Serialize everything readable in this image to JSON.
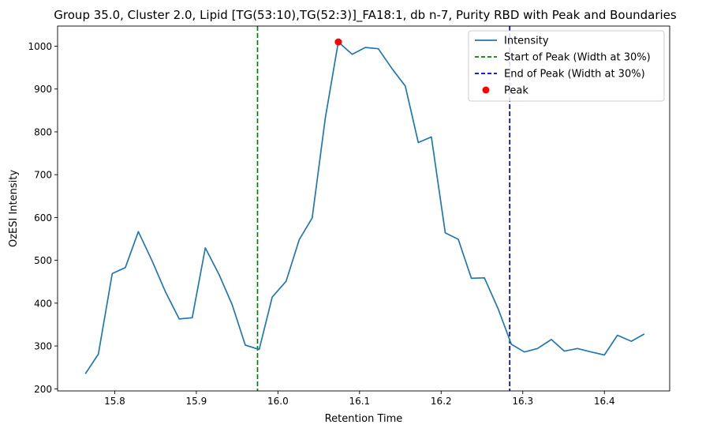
{
  "chart_data": {
    "type": "line",
    "title": "Group 35.0, Cluster 2.0, Lipid [TG(53:10),TG(52:3)]_FA18:1, db n-7, Purity RBD with Peak and Boundaries",
    "xlabel": "Retention Time",
    "ylabel": "OzESI Intensity",
    "xlim": [
      15.73,
      16.48
    ],
    "ylim": [
      195,
      1047
    ],
    "xticks": [
      15.8,
      15.9,
      16.0,
      16.1,
      16.2,
      16.3,
      16.4
    ],
    "xtick_labels": [
      "15.8",
      "15.9",
      "16.0",
      "16.1",
      "16.2",
      "16.3",
      "16.4"
    ],
    "yticks": [
      200,
      300,
      400,
      500,
      600,
      700,
      800,
      900,
      1000
    ],
    "ytick_labels": [
      "200",
      "300",
      "400",
      "500",
      "600",
      "700",
      "800",
      "900",
      "1000"
    ],
    "grid": false,
    "legend_position": "top-right",
    "series": [
      {
        "name": "Intensity",
        "color": "#1f77b4",
        "x": [
          15.764,
          15.78,
          15.797,
          15.813,
          15.829,
          15.846,
          15.862,
          15.879,
          15.895,
          15.911,
          15.928,
          15.944,
          15.96,
          15.977,
          15.993,
          16.01,
          16.026,
          16.042,
          16.058,
          16.074,
          16.091,
          16.107,
          16.123,
          16.14,
          16.156,
          16.172,
          16.188,
          16.205,
          16.221,
          16.237,
          16.253,
          16.27,
          16.286,
          16.302,
          16.318,
          16.335,
          16.351,
          16.367,
          16.384,
          16.4,
          16.416,
          16.433,
          16.449
        ],
        "y": [
          235,
          281,
          469,
          483,
          567,
          498,
          427,
          363,
          366,
          529,
          466,
          396,
          302,
          292,
          414,
          451,
          548,
          599,
          832,
          1010,
          981,
          997,
          994,
          947,
          907,
          775,
          788,
          564,
          549,
          458,
          459,
          386,
          304,
          286,
          294,
          315,
          288,
          294,
          286,
          279,
          325,
          311,
          328
        ]
      }
    ],
    "vlines": [
      {
        "name": "Start of Peak (Width at 30%)",
        "x": 15.975,
        "color": "#008000",
        "style": "dashed"
      },
      {
        "name": "End of Peak (Width at 30%)",
        "x": 16.284,
        "color": "#0000cc",
        "style": "dashed"
      }
    ],
    "peak": {
      "name": "Peak",
      "x": 16.074,
      "y": 1010,
      "color": "#ff0000"
    }
  }
}
